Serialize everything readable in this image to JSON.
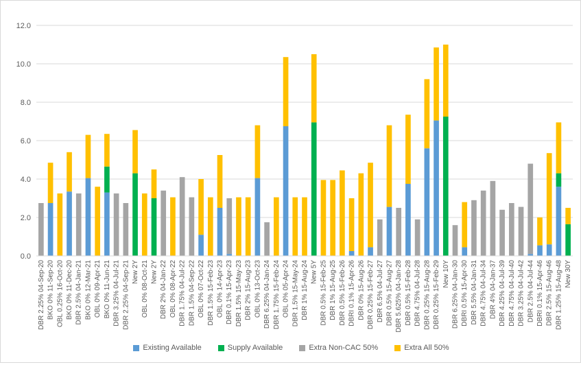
{
  "colors": {
    "existing": "#5b9bd5",
    "supply": "#00b050",
    "noncac": "#a5a5a5",
    "extra": "#ffc000",
    "grid": "#d9d9d9",
    "axis": "#595959"
  },
  "chart_data": {
    "type": "bar",
    "stacked": true,
    "ylim": [
      0,
      12
    ],
    "yticks": [
      "0.0",
      "2.0",
      "4.0",
      "6.0",
      "8.0",
      "10.0",
      "12.0"
    ],
    "grid": true,
    "legend_position": "bottom",
    "categories": [
      "DBR 2.25% 04-Sep-20",
      "BKO 0% 11-Sep-20",
      "OBL 0.25% 16-Oct-20",
      "BKO 0% 11-Dec-20",
      "DBR 2.5% 04-Jan-21",
      "BKO 0% 12-Mar-21",
      "OBL 0% 09-Apr-21",
      "BKO 0% 11-Jun-21",
      "DBR 3.25% 04-Jul-21",
      "DBR 2.25% 04-Sep-21",
      "New 2Y",
      "OBL 0% 08-Oct-21",
      "New 2Y",
      "DBR 2% 04-Jan-22",
      "OBL 0% 08-Apr-22",
      "DBR 1.75% 04-Jul-22",
      "DBR 1.5% 04-Sep-22",
      "OBL 0% 07-Oct-22",
      "DBR 1.5% 15-Feb-23",
      "OBL 0% 14-Apr-23",
      "DBR 0.1% 15-Apr-23",
      "DBR 1.5% 15-May-23",
      "DBR 2% 15-Aug-23",
      "OBL 0% 13-Oct-23",
      "DBR 6.25% 04-Jan-24",
      "DBR 1.75% 15-Feb-24",
      "OBL 0% 05-Apr-24",
      "DBR 1.5% 15-May-24",
      "DBR 1% 15-Aug-24",
      "New 5Y",
      "DBR 0.5% 15-Feb-25",
      "DBR 1% 15-Aug-25",
      "DBR 0.5% 15-Feb-26",
      "DBRI 0.1% 15-Apr-26",
      "DBR 0% 15-Aug-26",
      "DBR 0.25% 15-Feb-27",
      "DBR 6.5% 04-Jul-27",
      "DBR 0.5% 15-Aug-27",
      "DBR 5.625% 04-Jan-28",
      "DBR 0.5% 15-Feb-28",
      "DBR 4.75% 04-Jul-28",
      "DBR 0.25% 15-Aug-28",
      "DBR 0.25% 15-Feb-29",
      "New 10Y",
      "DBR 6.25% 04-Jan-30",
      "DBRI 0.5% 15-Apr-30",
      "DBR 5.5% 04-Jan-31",
      "DBR 4.75% 04-Jul-34",
      "DBR 4% 04-Jan-37",
      "DBR 4.25% 04-Jul-39",
      "DBR 4.75% 04-Jul-40",
      "DBR 3.25% 04-Jul-42",
      "DBR 2.5% 04-Jul-44",
      "DBRI 0.1% 15-Apr-46",
      "DBR 2.5% 15-Aug-46",
      "DBR 1.25% 15-Aug-48",
      "New 30Y"
    ],
    "series": [
      {
        "name": "Existing Available",
        "color_key": "existing",
        "values": [
          0,
          2.75,
          0,
          3.35,
          0,
          4.05,
          0,
          3.3,
          0,
          0,
          0,
          0,
          0,
          0,
          0,
          0,
          0,
          1.1,
          0,
          2.5,
          0.1,
          0,
          0,
          4.05,
          0,
          0,
          6.75,
          0,
          0,
          0,
          0,
          0,
          0,
          0.25,
          0,
          0.45,
          0,
          2.55,
          0,
          3.75,
          0,
          5.6,
          7.05,
          0,
          0,
          0.45,
          0,
          0,
          0,
          0,
          0,
          0,
          0.1,
          0.55,
          0.6,
          3.6,
          0
        ]
      },
      {
        "name": "Supply Available",
        "color_key": "supply",
        "values": [
          0,
          0,
          0,
          0,
          0,
          0,
          0,
          1.35,
          0,
          0,
          4.3,
          0,
          3.0,
          0,
          0,
          0,
          0,
          0,
          0,
          0,
          0,
          0,
          0,
          0,
          0,
          0,
          0,
          0,
          0,
          6.95,
          0,
          0,
          0,
          0,
          0,
          0,
          0,
          0,
          0,
          0,
          0,
          0,
          0,
          7.25,
          0,
          0,
          0,
          0,
          0,
          0,
          0,
          0,
          0,
          0,
          0,
          0.7,
          1.65
        ]
      },
      {
        "name": "Extra Non-CAC 50%",
        "color_key": "noncac",
        "values": [
          2.75,
          0,
          0,
          0,
          3.25,
          0,
          0,
          0,
          3.25,
          2.75,
          0,
          0,
          0,
          3.4,
          0,
          4.1,
          3.05,
          0,
          0,
          0,
          2.9,
          0,
          0,
          0,
          1.75,
          0,
          0,
          0,
          0,
          0,
          0,
          0,
          0,
          0,
          0,
          0,
          1.9,
          0,
          2.5,
          0,
          1.9,
          0,
          0,
          0,
          1.6,
          0,
          2.9,
          3.4,
          3.9,
          2.4,
          2.75,
          2.55,
          4.7,
          0,
          0,
          0,
          0
        ]
      },
      {
        "name": "Extra All 50%",
        "color_key": "extra",
        "values": [
          0,
          2.1,
          3.25,
          2.05,
          0,
          2.25,
          3.6,
          1.7,
          0,
          0,
          2.25,
          3.25,
          1.5,
          0,
          3.05,
          0,
          0,
          2.9,
          3.05,
          2.75,
          0,
          3.05,
          3.05,
          2.75,
          0,
          3.05,
          3.6,
          3.05,
          3.05,
          3.55,
          3.95,
          3.95,
          4.45,
          2.75,
          4.3,
          4.4,
          0,
          4.25,
          0,
          3.6,
          0,
          3.6,
          3.8,
          3.75,
          0,
          2.35,
          0,
          0,
          0,
          0,
          0,
          0,
          0,
          1.45,
          4.75,
          2.65,
          0.85
        ]
      }
    ]
  }
}
